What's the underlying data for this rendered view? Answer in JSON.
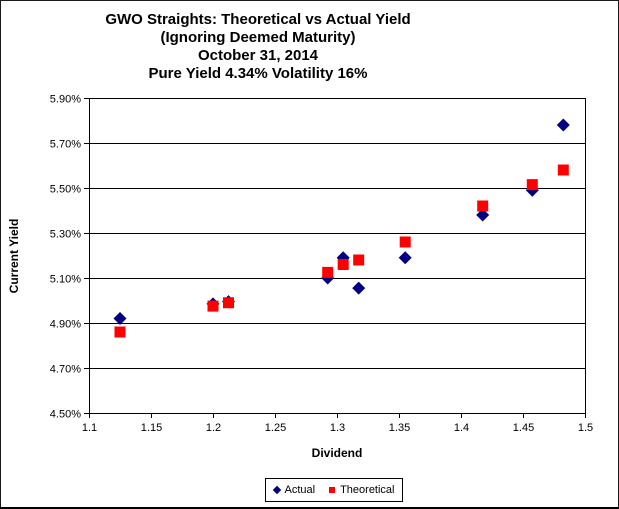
{
  "chart_data": {
    "type": "scatter",
    "title_lines": [
      "GWO Straights: Theoretical vs Actual Yield",
      "(Ignoring Deemed Maturity)",
      "October 31, 2014",
      "Pure Yield 4.34% Volatility 16%"
    ],
    "xlabel": "Dividend",
    "ylabel": "Current Yield",
    "xlim": [
      1.1,
      1.5
    ],
    "ylim": [
      4.5,
      5.9
    ],
    "x_ticks": [
      {
        "v": 1.1,
        "label": "1.1"
      },
      {
        "v": 1.15,
        "label": "1.15"
      },
      {
        "v": 1.2,
        "label": "1.2"
      },
      {
        "v": 1.25,
        "label": "1.25"
      },
      {
        "v": 1.3,
        "label": "1.3"
      },
      {
        "v": 1.35,
        "label": "1.35"
      },
      {
        "v": 1.4,
        "label": "1.4"
      },
      {
        "v": 1.45,
        "label": "1.45"
      },
      {
        "v": 1.5,
        "label": "1.5"
      }
    ],
    "y_ticks": [
      {
        "v": 4.5,
        "label": "4.50%"
      },
      {
        "v": 4.7,
        "label": "4.70%"
      },
      {
        "v": 4.9,
        "label": "4.90%"
      },
      {
        "v": 5.1,
        "label": "5.10%"
      },
      {
        "v": 5.3,
        "label": "5.30%"
      },
      {
        "v": 5.5,
        "label": "5.50%"
      },
      {
        "v": 5.7,
        "label": "5.70%"
      },
      {
        "v": 5.9,
        "label": "5.90%"
      }
    ],
    "grid": "horizontal",
    "legend_position": "bottom-center",
    "series": [
      {
        "name": "Actual",
        "marker": "diamond",
        "color": "#000080",
        "points": [
          [
            1.125,
            4.92
          ],
          [
            1.2,
            4.985
          ],
          [
            1.2125,
            4.995
          ],
          [
            1.2925,
            5.1
          ],
          [
            1.305,
            5.19
          ],
          [
            1.3175,
            5.055
          ],
          [
            1.355,
            5.19
          ],
          [
            1.4175,
            5.38
          ],
          [
            1.4575,
            5.49
          ],
          [
            1.4825,
            5.78
          ]
        ]
      },
      {
        "name": "Theoretical",
        "marker": "square",
        "color": "#FF0000",
        "points": [
          [
            1.125,
            4.86
          ],
          [
            1.2,
            4.975
          ],
          [
            1.2125,
            4.99
          ],
          [
            1.2925,
            5.125
          ],
          [
            1.305,
            5.16
          ],
          [
            1.3175,
            5.18
          ],
          [
            1.355,
            5.26
          ],
          [
            1.4175,
            5.42
          ],
          [
            1.4575,
            5.515
          ],
          [
            1.4825,
            5.58
          ]
        ]
      }
    ],
    "axis_color": "#000000",
    "background_color": "#FFFFFF"
  }
}
